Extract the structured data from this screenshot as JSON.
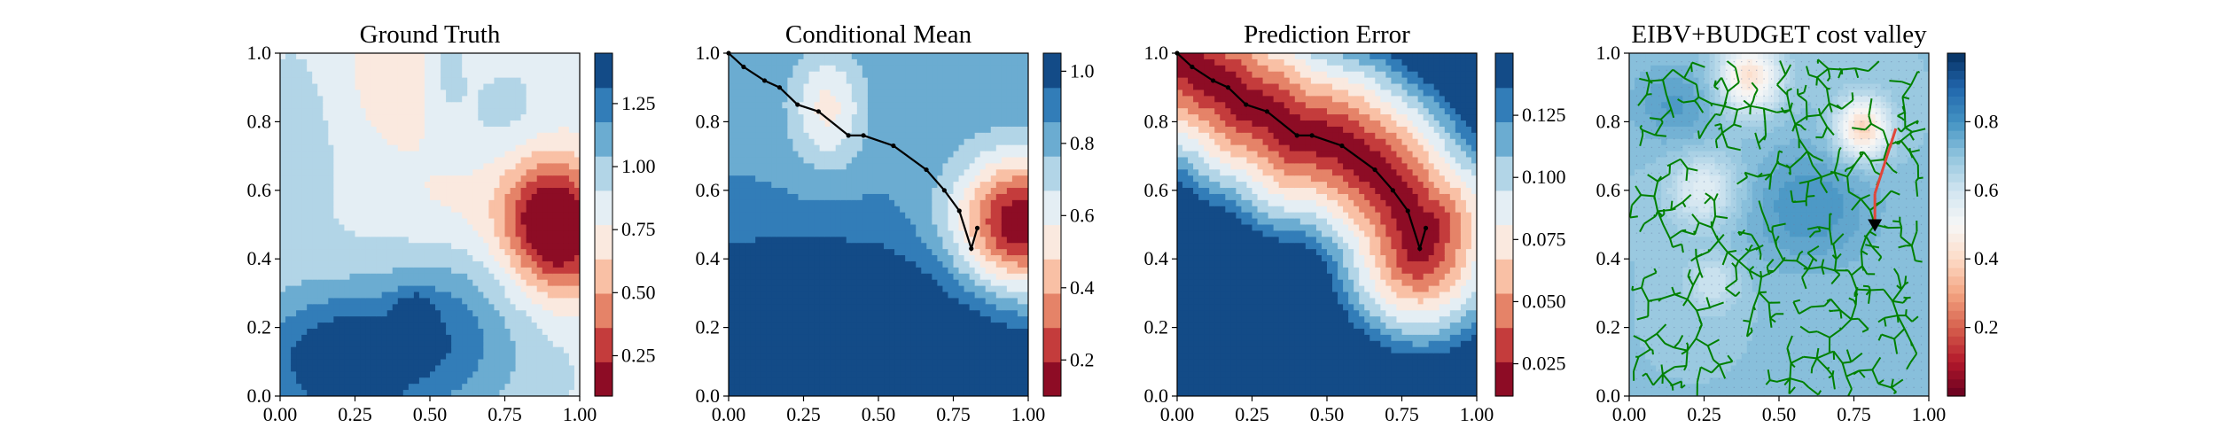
{
  "chart_data": [
    {
      "type": "heatmap",
      "title": "Ground Truth",
      "xlim": [
        0,
        1
      ],
      "ylim": [
        0,
        1
      ],
      "xticks": [
        "0.00",
        "0.25",
        "0.50",
        "0.75",
        "1.00"
      ],
      "yticks": [
        "0.0",
        "0.2",
        "0.4",
        "0.6",
        "0.8",
        "1.0"
      ],
      "colormap": "RdBu",
      "colorbar": {
        "range": [
          0.09,
          1.45
        ],
        "levels": 10,
        "ticks": [
          "0.25",
          "0.50",
          "0.75",
          "1.00",
          "1.25"
        ]
      },
      "field": {
        "base": 0.86,
        "terms": [
          {
            "x": 0.9,
            "y": 0.52,
            "sx": 0.12,
            "sy": 0.13,
            "a": -0.78
          },
          {
            "x": 0.97,
            "y": 0.4,
            "sx": 0.1,
            "sy": 0.12,
            "a": -0.25
          },
          {
            "x": 0.4,
            "y": 0.96,
            "sx": 0.12,
            "sy": 0.16,
            "a": -0.22
          },
          {
            "x": 0.55,
            "y": 0.55,
            "sx": 0.12,
            "sy": 0.12,
            "a": -0.12
          },
          {
            "x": 0.15,
            "y": 0.1,
            "sx": 0.2,
            "sy": 0.14,
            "a": 0.4
          },
          {
            "x": 0.45,
            "y": 0.12,
            "sx": 0.28,
            "sy": 0.16,
            "a": 0.34
          },
          {
            "x": 0.55,
            "y": 0.28,
            "sx": 0.14,
            "sy": 0.16,
            "a": 0.15
          },
          {
            "x": 0.25,
            "y": 0.03,
            "sx": 0.07,
            "sy": 0.05,
            "a": 0.3
          },
          {
            "x": 0.45,
            "y": 0.24,
            "sx": 0.04,
            "sy": 0.04,
            "a": 0.3
          },
          {
            "x": 0.05,
            "y": 0.7,
            "sx": 0.1,
            "sy": 0.22,
            "a": 0.12
          },
          {
            "x": 0.55,
            "y": 0.97,
            "sx": 0.05,
            "sy": 0.12,
            "a": 0.17
          },
          {
            "x": 0.75,
            "y": 0.82,
            "sx": 0.1,
            "sy": 0.1,
            "a": 0.1
          }
        ]
      },
      "path": []
    },
    {
      "type": "heatmap",
      "title": "Conditional Mean",
      "xlim": [
        0,
        1
      ],
      "ylim": [
        0,
        1
      ],
      "xticks": [
        "0.00",
        "0.25",
        "0.50",
        "0.75",
        "1.00"
      ],
      "yticks": [
        "0.0",
        "0.2",
        "0.4",
        "0.6",
        "0.8",
        "1.0"
      ],
      "colormap": "RdBu",
      "colorbar": {
        "range": [
          0.1,
          1.05
        ],
        "levels": 10,
        "ticks": [
          "0.2",
          "0.4",
          "0.6",
          "0.8",
          "1.0"
        ]
      },
      "field": {
        "base": 0.85,
        "terms": [
          {
            "x": 0.97,
            "y": 0.5,
            "sx": 0.15,
            "sy": 0.14,
            "a": -0.75
          },
          {
            "x": 0.33,
            "y": 0.84,
            "sx": 0.09,
            "sy": 0.12,
            "a": -0.3
          },
          {
            "x": 0.32,
            "y": 0.25,
            "sx": 0.45,
            "sy": 0.15,
            "a": 0.25
          },
          {
            "x": 0.85,
            "y": 0.05,
            "sx": 0.25,
            "sy": 0.12,
            "a": 0.22
          },
          {
            "x": 0.05,
            "y": 0.0,
            "sx": 0.3,
            "sy": 0.25,
            "a": 0.1
          }
        ]
      },
      "path": [
        [
          0.0,
          1.0
        ],
        [
          0.05,
          0.96
        ],
        [
          0.12,
          0.92
        ],
        [
          0.17,
          0.9
        ],
        [
          0.23,
          0.85
        ],
        [
          0.3,
          0.83
        ],
        [
          0.4,
          0.76
        ],
        [
          0.45,
          0.76
        ],
        [
          0.55,
          0.73
        ],
        [
          0.66,
          0.66
        ],
        [
          0.72,
          0.6
        ],
        [
          0.77,
          0.54
        ],
        [
          0.81,
          0.43
        ],
        [
          0.83,
          0.49
        ]
      ]
    },
    {
      "type": "heatmap",
      "title": "Prediction Error",
      "xlim": [
        0,
        1
      ],
      "ylim": [
        0,
        1
      ],
      "xticks": [
        "0.00",
        "0.25",
        "0.50",
        "0.75",
        "1.00"
      ],
      "yticks": [
        "0.0",
        "0.2",
        "0.4",
        "0.6",
        "0.8",
        "1.0"
      ],
      "colormap": "RdBu",
      "colorbar": {
        "range": [
          0.012,
          0.15
        ],
        "levels": 10,
        "ticks": [
          "0.025",
          "0.050",
          "0.075",
          "0.100",
          "0.125"
        ]
      },
      "field": {
        "base": 0.15,
        "from_path_distance": {
          "min": 0.012,
          "max": 0.15,
          "scale": 0.34
        }
      },
      "path": [
        [
          0.0,
          1.0
        ],
        [
          0.05,
          0.96
        ],
        [
          0.12,
          0.92
        ],
        [
          0.17,
          0.9
        ],
        [
          0.23,
          0.85
        ],
        [
          0.3,
          0.83
        ],
        [
          0.4,
          0.76
        ],
        [
          0.45,
          0.76
        ],
        [
          0.55,
          0.73
        ],
        [
          0.66,
          0.66
        ],
        [
          0.72,
          0.6
        ],
        [
          0.77,
          0.54
        ],
        [
          0.81,
          0.43
        ],
        [
          0.83,
          0.49
        ]
      ]
    },
    {
      "type": "heatmap",
      "title": "EIBV+BUDGET cost valley",
      "xlim": [
        0,
        1
      ],
      "ylim": [
        0,
        1
      ],
      "xticks": [
        "0.00",
        "0.25",
        "0.50",
        "0.75",
        "1.00"
      ],
      "yticks": [
        "0.0",
        "0.2",
        "0.4",
        "0.6",
        "0.8",
        "1.0"
      ],
      "colormap": "RdBu",
      "colorbar": {
        "range": [
          0.0,
          1.0
        ],
        "levels": 40,
        "ticks": [
          "0.2",
          "0.4",
          "0.6",
          "0.8"
        ]
      },
      "field": {
        "base": 0.7,
        "terms": [
          {
            "x": 0.4,
            "y": 0.93,
            "sx": 0.07,
            "sy": 0.07,
            "a": -0.28
          },
          {
            "x": 0.78,
            "y": 0.78,
            "sx": 0.06,
            "sy": 0.06,
            "a": -0.32
          },
          {
            "x": 0.25,
            "y": 0.6,
            "sx": 0.08,
            "sy": 0.07,
            "a": -0.15
          },
          {
            "x": 0.28,
            "y": 0.33,
            "sx": 0.06,
            "sy": 0.06,
            "a": -0.1
          },
          {
            "x": 0.15,
            "y": 0.85,
            "sx": 0.1,
            "sy": 0.08,
            "a": 0.08
          },
          {
            "x": 0.6,
            "y": 0.55,
            "sx": 0.15,
            "sy": 0.12,
            "a": 0.1
          }
        ]
      },
      "current_location": [
        0.82,
        0.5
      ],
      "tree_color": "#008000",
      "selected_path_color": "#e0463a"
    }
  ]
}
